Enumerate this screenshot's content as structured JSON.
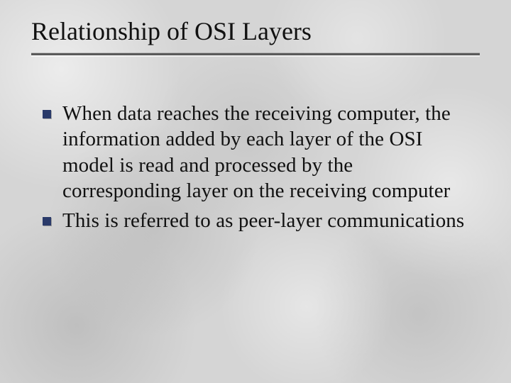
{
  "slide": {
    "title": "Relationship of OSI Layers",
    "bullets": [
      {
        "text": "When data reaches the receiving computer, the information added by each layer of the OSI model is read and processed by the corresponding layer on the receiving computer"
      },
      {
        "text": "This is referred to as peer-layer communications"
      }
    ],
    "style": {
      "background_base": "#d5d5d5",
      "title_color": "#111111",
      "title_fontsize_pt": 27,
      "title_underline_color": "#5a5a5a",
      "body_color": "#111111",
      "body_fontsize_pt": 22,
      "bullet_marker_color": "#2a3a6a",
      "bullet_marker_shape": "square",
      "font_family": "Times New Roman"
    }
  }
}
